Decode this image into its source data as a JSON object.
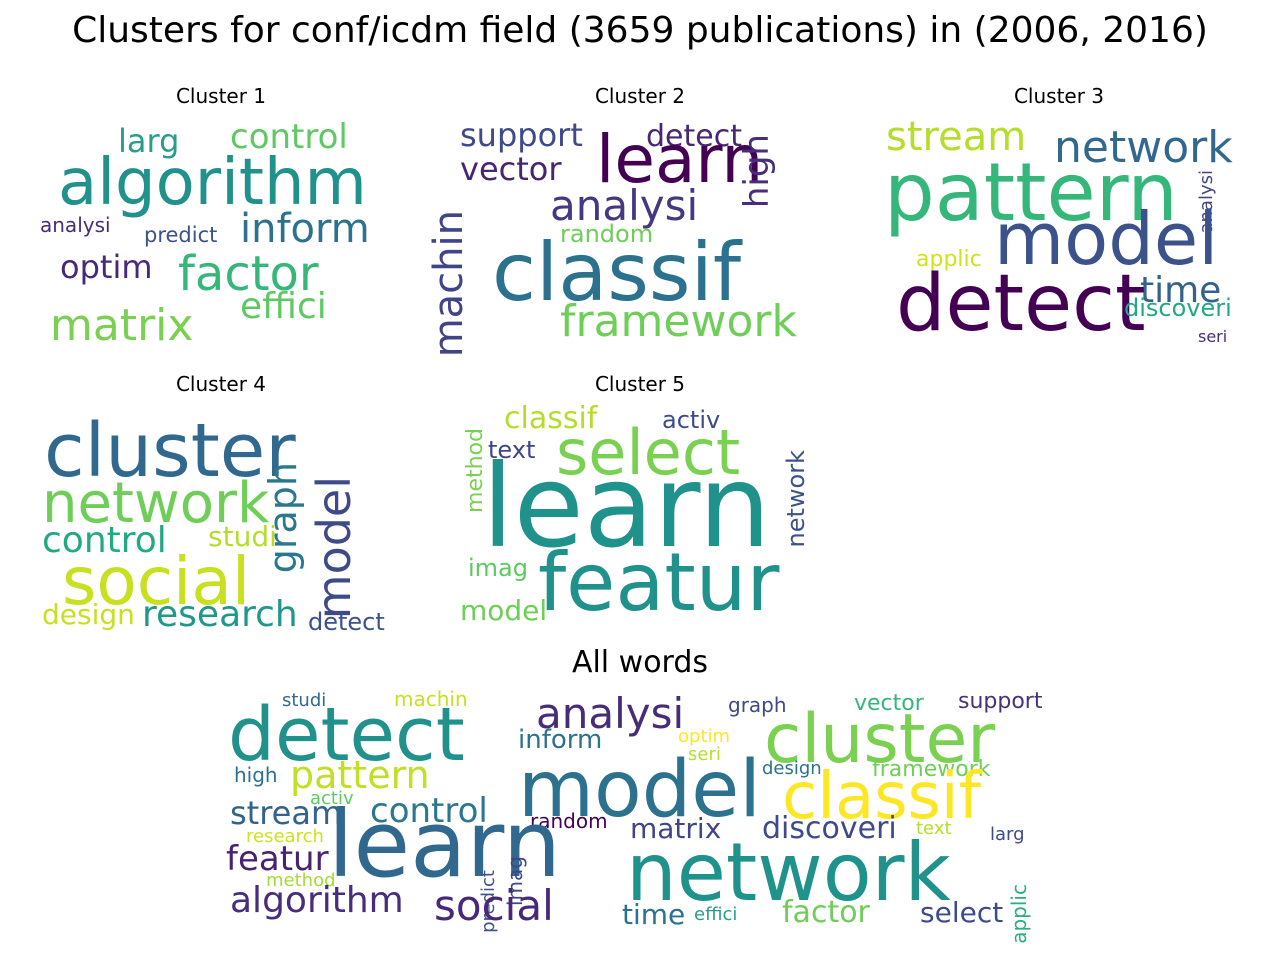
{
  "title": "Clusters for conf/icdm field (3659 publications) in (2006, 2016)",
  "panels": [
    {
      "label": "Cluster 1",
      "words": [
        {
          "text": "algorithm",
          "color": "#21918c"
        },
        {
          "text": "larg",
          "color": "#2a9d8a"
        },
        {
          "text": "control",
          "color": "#5ec962"
        },
        {
          "text": "inform",
          "color": "#2c728e"
        },
        {
          "text": "analysi",
          "color": "#472c7a"
        },
        {
          "text": "predict",
          "color": "#3b528b"
        },
        {
          "text": "optim",
          "color": "#482878"
        },
        {
          "text": "factor",
          "color": "#35b779"
        },
        {
          "text": "effici",
          "color": "#5ec962"
        },
        {
          "text": "matrix",
          "color": "#7ad151"
        }
      ]
    },
    {
      "label": "Cluster 2",
      "words": [
        {
          "text": "support",
          "color": "#3e4a89"
        },
        {
          "text": "detect",
          "color": "#482677"
        },
        {
          "text": "learn",
          "color": "#440154"
        },
        {
          "text": "high",
          "color": "#472d7b"
        },
        {
          "text": "vector",
          "color": "#482475"
        },
        {
          "text": "analysi",
          "color": "#453781"
        },
        {
          "text": "machin",
          "color": "#414487"
        },
        {
          "text": "random",
          "color": "#6ece58"
        },
        {
          "text": "classif",
          "color": "#2c728e"
        },
        {
          "text": "framework",
          "color": "#6ece58"
        }
      ]
    },
    {
      "label": "Cluster 3",
      "words": [
        {
          "text": "stream",
          "color": "#b5de2b"
        },
        {
          "text": "network",
          "color": "#31688e"
        },
        {
          "text": "pattern",
          "color": "#35b779"
        },
        {
          "text": "analysi",
          "color": "#414487"
        },
        {
          "text": "model",
          "color": "#3b528b"
        },
        {
          "text": "applic",
          "color": "#d0e11c"
        },
        {
          "text": "time",
          "color": "#33638d"
        },
        {
          "text": "detect",
          "color": "#440154"
        },
        {
          "text": "discoveri",
          "color": "#22a884"
        },
        {
          "text": "seri",
          "color": "#472d7b"
        }
      ]
    },
    {
      "label": "Cluster 4",
      "words": [
        {
          "text": "cluster",
          "color": "#31688e"
        },
        {
          "text": "network",
          "color": "#6ece58"
        },
        {
          "text": "graph",
          "color": "#2a788e"
        },
        {
          "text": "model",
          "color": "#3e4a89"
        },
        {
          "text": "control",
          "color": "#22a884"
        },
        {
          "text": "studi",
          "color": "#b5de2b"
        },
        {
          "text": "social",
          "color": "#c8e020"
        },
        {
          "text": "design",
          "color": "#c8e020"
        },
        {
          "text": "research",
          "color": "#1f988b"
        },
        {
          "text": "detect",
          "color": "#3b528b"
        }
      ]
    },
    {
      "label": "Cluster 5",
      "words": [
        {
          "text": "classif",
          "color": "#b5de2b"
        },
        {
          "text": "activ",
          "color": "#3e4a89"
        },
        {
          "text": "method",
          "color": "#7ad151"
        },
        {
          "text": "text",
          "color": "#414487"
        },
        {
          "text": "select",
          "color": "#7ad151"
        },
        {
          "text": "learn",
          "color": "#20928c"
        },
        {
          "text": "network",
          "color": "#3b528b"
        },
        {
          "text": "imag",
          "color": "#5ec962"
        },
        {
          "text": "featur",
          "color": "#21918c"
        },
        {
          "text": "model",
          "color": "#6ece58"
        }
      ]
    },
    {
      "label": "All words",
      "words": [
        {
          "text": "studi",
          "color": "#31688e"
        },
        {
          "text": "machin",
          "color": "#c8e020"
        },
        {
          "text": "graph",
          "color": "#3e4a89"
        },
        {
          "text": "vector",
          "color": "#35b779"
        },
        {
          "text": "support",
          "color": "#46327e"
        },
        {
          "text": "detect",
          "color": "#21918c"
        },
        {
          "text": "analysi",
          "color": "#472c7a"
        },
        {
          "text": "inform",
          "color": "#2c728e"
        },
        {
          "text": "optim",
          "color": "#fde725"
        },
        {
          "text": "seri",
          "color": "#b5de2b"
        },
        {
          "text": "cluster",
          "color": "#7ad151"
        },
        {
          "text": "high",
          "color": "#2c728e"
        },
        {
          "text": "pattern",
          "color": "#c2df23"
        },
        {
          "text": "model",
          "color": "#2c728e"
        },
        {
          "text": "design",
          "color": "#2c728e"
        },
        {
          "text": "framework",
          "color": "#6ece58"
        },
        {
          "text": "classif",
          "color": "#fde725"
        },
        {
          "text": "activ",
          "color": "#5ec962"
        },
        {
          "text": "stream",
          "color": "#33638d"
        },
        {
          "text": "control",
          "color": "#2a788e"
        },
        {
          "text": "research",
          "color": "#d0e11c"
        },
        {
          "text": "random",
          "color": "#440154"
        },
        {
          "text": "matrix",
          "color": "#414487"
        },
        {
          "text": "discoveri",
          "color": "#3e4a89"
        },
        {
          "text": "text",
          "color": "#b5de2b"
        },
        {
          "text": "larg",
          "color": "#3e4a89"
        },
        {
          "text": "featur",
          "color": "#482173"
        },
        {
          "text": "learn",
          "color": "#31688e"
        },
        {
          "text": "predict",
          "color": "#3b528b"
        },
        {
          "text": "imag",
          "color": "#414487"
        },
        {
          "text": "network",
          "color": "#20928c"
        },
        {
          "text": "applic",
          "color": "#29af7f"
        },
        {
          "text": "method",
          "color": "#a5db36"
        },
        {
          "text": "algorithm",
          "color": "#472d7b"
        },
        {
          "text": "social",
          "color": "#482878"
        },
        {
          "text": "time",
          "color": "#2c728e"
        },
        {
          "text": "effici",
          "color": "#2a9d8a"
        },
        {
          "text": "factor",
          "color": "#6ece58"
        },
        {
          "text": "select",
          "color": "#3e4a89"
        }
      ]
    }
  ]
}
